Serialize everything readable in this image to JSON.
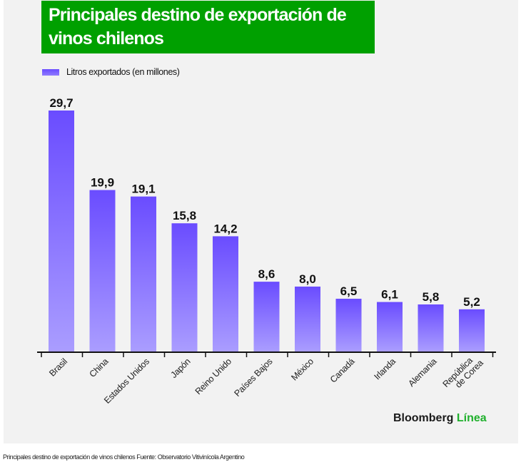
{
  "chart_data": {
    "type": "bar",
    "title": "Principales destino de exportación de vinos chilenos",
    "xlabel": "",
    "ylabel": "",
    "legend": {
      "entries": [
        "Litros exportados (en millones)"
      ],
      "placement": "top-left"
    },
    "categories": [
      "Brasil",
      "China",
      "Estados Unidos",
      "Japón",
      "Reino Unido",
      "Países Bajos",
      "México",
      "Canadá",
      "Irlanda",
      "Alemania",
      "República de Corea"
    ],
    "category_lines": [
      [
        "Brasil"
      ],
      [
        "China"
      ],
      [
        "Estados Unidos"
      ],
      [
        "Japón"
      ],
      [
        "Reino Unido"
      ],
      [
        "Países Bajos"
      ],
      [
        "México"
      ],
      [
        "Canadá"
      ],
      [
        "Irlanda"
      ],
      [
        "Alemania"
      ],
      [
        "República",
        "de Corea"
      ]
    ],
    "series": [
      {
        "name": "Litros exportados (en millones)",
        "values": [
          29.7,
          19.9,
          19.1,
          15.8,
          14.2,
          8.6,
          8.0,
          6.5,
          6.1,
          5.8,
          5.2
        ]
      }
    ],
    "data_labels": [
      "29,7",
      "19,9",
      "19,1",
      "15,8",
      "14,2",
      "8,6",
      "8,0",
      "6,5",
      "6,1",
      "5,8",
      "5,2"
    ],
    "ylim": [
      0,
      29.7
    ],
    "grid": false,
    "colors": {
      "bar_top": "#6a4cff",
      "bar_bottom": "#aa9dff",
      "axis": "#111111"
    }
  },
  "header": {
    "title": "Principales destino de exportación de vinos chilenos",
    "background": "#00a000"
  },
  "legend": {
    "label": "Litros exportados (en millones)"
  },
  "brand": {
    "part1": "Bloomberg",
    "part2": "Línea",
    "accent": "#1fb02c"
  },
  "caption": "Principales destino de exportación de vinos chilenos Fuente: Observatorio Vitivinícola Argentino"
}
